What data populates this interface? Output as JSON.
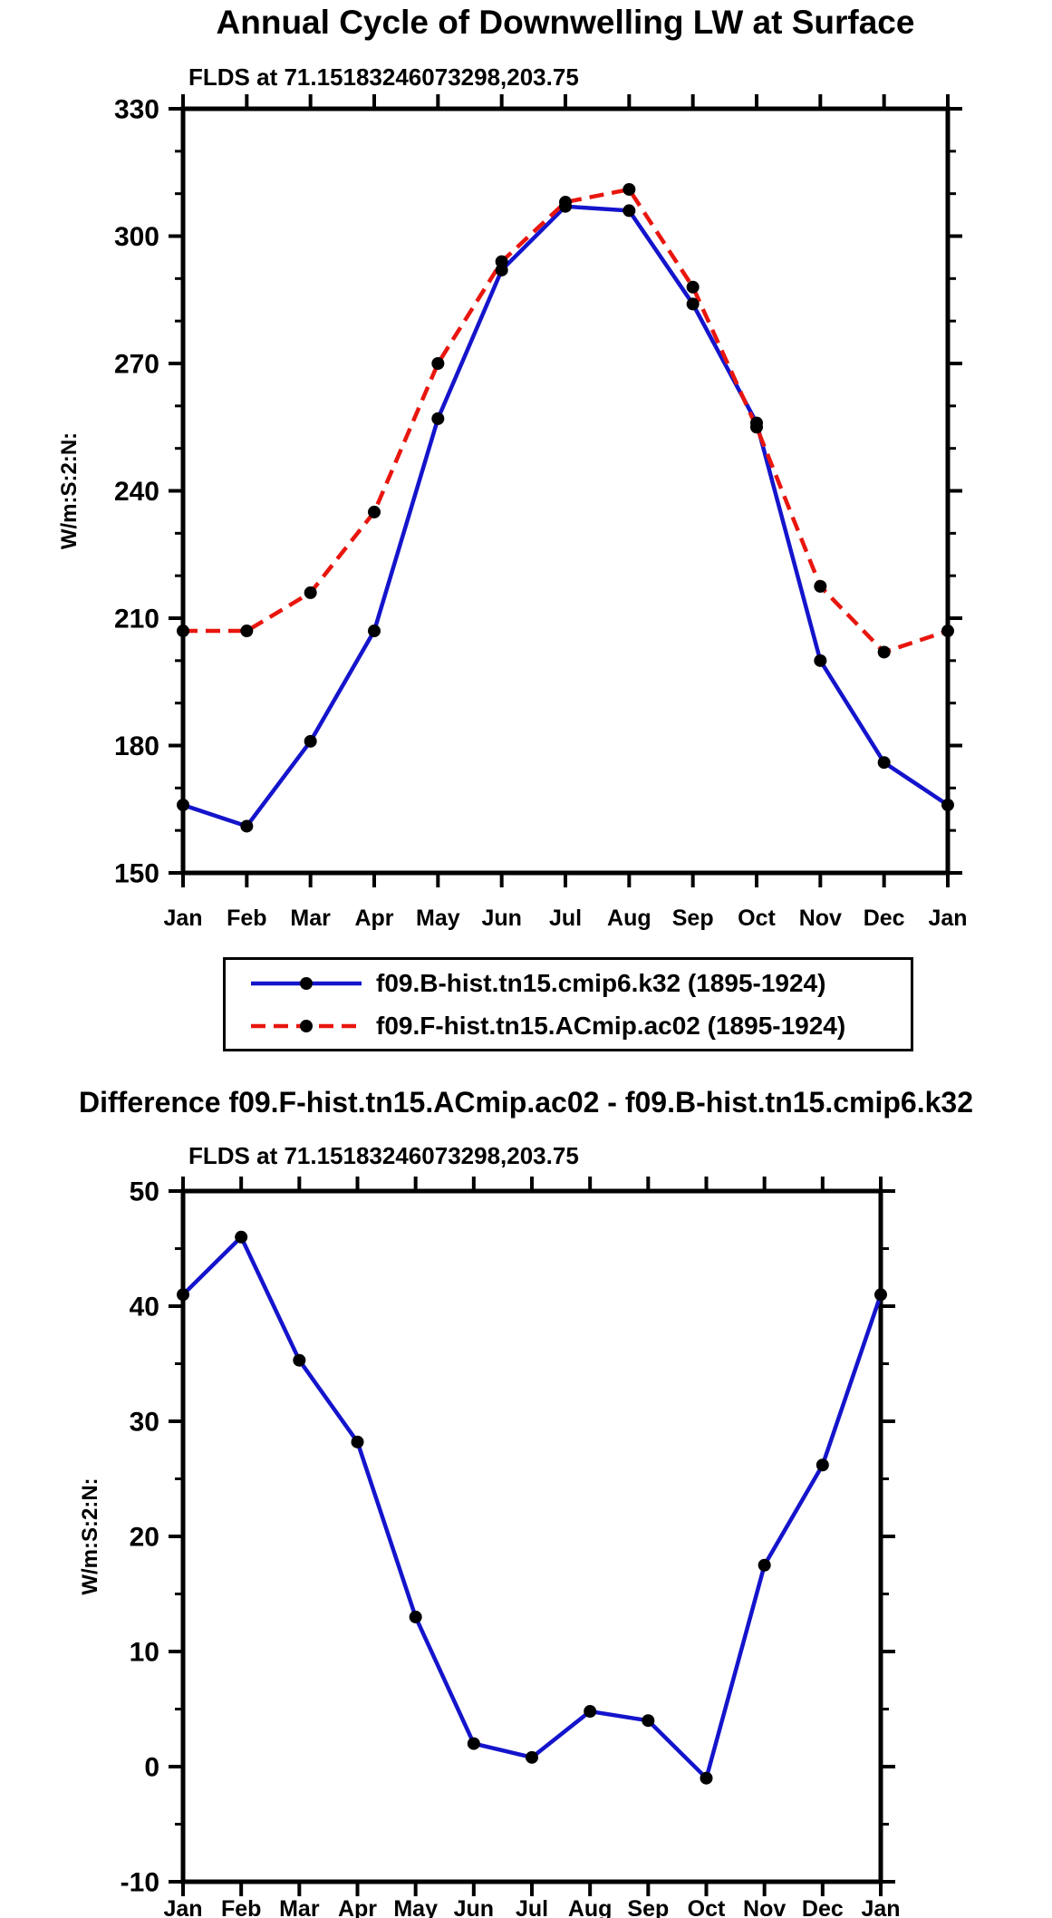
{
  "colors": {
    "series1": "#1414cc",
    "series2": "#e8160e",
    "marker": "#000000",
    "frame": "#000000",
    "background": "#ffffff"
  },
  "chart_data": [
    {
      "type": "line",
      "title": "Annual Cycle of Downwelling LW at Surface",
      "subtitle": "FLDS at 71.15183246073298,203.75",
      "ylabel": "W/m:S:2:N:",
      "categories": [
        "Jan",
        "Feb",
        "Mar",
        "Apr",
        "May",
        "Jun",
        "Jul",
        "Aug",
        "Sep",
        "Oct",
        "Nov",
        "Dec",
        "Jan"
      ],
      "ylim": [
        150,
        330
      ],
      "yticks": [
        150,
        180,
        210,
        240,
        270,
        300,
        330
      ],
      "yminor_step": 10,
      "grid": false,
      "legend_position": "below",
      "series": [
        {
          "name": "f09.B-hist.tn15.cmip6.k32 (1895-1924)",
          "style": "solid",
          "color_key": "series1",
          "values": [
            166,
            161,
            181,
            207,
            257,
            292,
            307,
            306,
            284,
            256,
            200,
            176,
            166
          ]
        },
        {
          "name": "f09.F-hist.tn15.ACmip.ac02 (1895-1924)",
          "style": "dashed",
          "color_key": "series2",
          "values": [
            207,
            207,
            216,
            235,
            270,
            294,
            308,
            311,
            288,
            255,
            217.5,
            202,
            207
          ]
        }
      ]
    },
    {
      "type": "line",
      "title": "Difference f09.F-hist.tn15.ACmip.ac02 - f09.B-hist.tn15.cmip6.k32",
      "subtitle": "FLDS at 71.15183246073298,203.75",
      "ylabel": "W/m:S:2:N:",
      "categories": [
        "Jan",
        "Feb",
        "Mar",
        "Apr",
        "May",
        "Jun",
        "Jul",
        "Aug",
        "Sep",
        "Oct",
        "Nov",
        "Dec",
        "Jan"
      ],
      "ylim": [
        -10,
        50
      ],
      "yticks": [
        -10,
        0,
        10,
        20,
        30,
        40,
        50
      ],
      "yminor_step": 5,
      "grid": false,
      "legend_position": "none",
      "series": [
        {
          "name": "difference",
          "style": "solid",
          "color_key": "series1",
          "values": [
            41,
            46,
            35.3,
            28.2,
            13,
            2,
            0.8,
            4.8,
            4,
            -1,
            17.5,
            26.2,
            41
          ]
        }
      ]
    }
  ]
}
